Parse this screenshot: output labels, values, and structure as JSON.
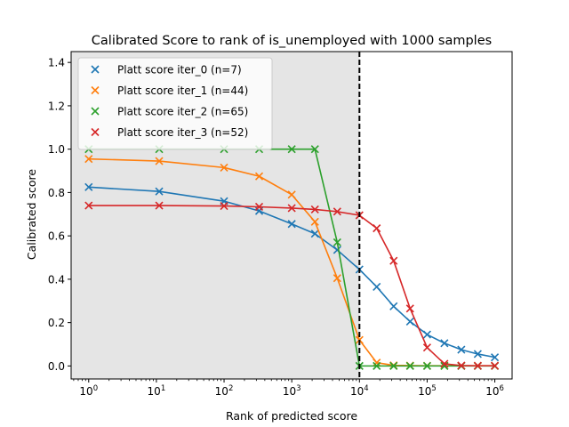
{
  "chart_data": {
    "type": "line",
    "title": "Calibrated Score to rank of is_unemployed with 1000 samples",
    "xlabel": "Rank of predicted score",
    "ylabel": "Calibrated score",
    "xscale": "log",
    "xlim": [
      0.55,
      1800000
    ],
    "ylim": [
      -0.06,
      1.45
    ],
    "x_ticks": [
      {
        "value": 1,
        "base": "10",
        "exp": "0"
      },
      {
        "value": 10,
        "base": "10",
        "exp": "1"
      },
      {
        "value": 100,
        "base": "10",
        "exp": "2"
      },
      {
        "value": 1000,
        "base": "10",
        "exp": "3"
      },
      {
        "value": 10000,
        "base": "10",
        "exp": "4"
      },
      {
        "value": 100000,
        "base": "10",
        "exp": "5"
      },
      {
        "value": 1000000,
        "base": "10",
        "exp": "6"
      }
    ],
    "y_ticks": [
      {
        "value": 0.0,
        "label": "0.0"
      },
      {
        "value": 0.2,
        "label": "0.2"
      },
      {
        "value": 0.4,
        "label": "0.4"
      },
      {
        "value": 0.6,
        "label": "0.6"
      },
      {
        "value": 0.8,
        "label": "0.8"
      },
      {
        "value": 1.0,
        "label": "1.0"
      },
      {
        "value": 1.2,
        "label": "1.2"
      },
      {
        "value": 1.4,
        "label": "1.4"
      }
    ],
    "shaded_region": {
      "x_from": 0.55,
      "x_to": 10000,
      "color": "#e5e5e5"
    },
    "threshold_line": {
      "x": 10000,
      "style": "dashed",
      "color": "#000000"
    },
    "grid": false,
    "legend_position": "top-left",
    "series": [
      {
        "name": "Platt score iter_0 (n=7)",
        "color": "#1f77b4",
        "x": [
          1,
          11,
          100,
          330,
          1000,
          2200,
          4700,
          10000,
          18000,
          32000,
          56000,
          100000,
          180000,
          320000,
          560000,
          1000000
        ],
        "y": [
          0.825,
          0.805,
          0.76,
          0.715,
          0.655,
          0.61,
          0.535,
          0.445,
          0.365,
          0.275,
          0.205,
          0.145,
          0.105,
          0.075,
          0.055,
          0.04
        ]
      },
      {
        "name": "Platt score iter_1 (n=44)",
        "color": "#ff7f0e",
        "x": [
          1,
          11,
          100,
          330,
          1000,
          2200,
          4700,
          10000,
          18000,
          32000,
          56000,
          100000,
          180000,
          320000,
          560000,
          1000000
        ],
        "y": [
          0.955,
          0.945,
          0.915,
          0.875,
          0.79,
          0.665,
          0.405,
          0.12,
          0.015,
          0.003,
          0.002,
          0.001,
          0.001,
          0.001,
          0.001,
          0.001
        ]
      },
      {
        "name": "Platt score iter_2 (n=65)",
        "color": "#2ca02c",
        "x": [
          1,
          11,
          100,
          330,
          1000,
          2200,
          4700,
          10000,
          18000,
          32000,
          56000,
          100000,
          180000,
          320000,
          560000,
          1000000
        ],
        "y": [
          1.0,
          1.0,
          1.0,
          1.0,
          1.0,
          1.0,
          0.57,
          0.0,
          0.0,
          0.0,
          0.0,
          0.0,
          0.0,
          0.0,
          0.0,
          0.0
        ]
      },
      {
        "name": "Platt score iter_3 (n=52)",
        "color": "#d62728",
        "x": [
          1,
          11,
          100,
          330,
          1000,
          2200,
          4700,
          10000,
          18000,
          32000,
          56000,
          100000,
          180000,
          320000,
          560000,
          1000000
        ],
        "y": [
          0.74,
          0.74,
          0.738,
          0.734,
          0.728,
          0.722,
          0.712,
          0.695,
          0.635,
          0.485,
          0.265,
          0.085,
          0.01,
          0.002,
          0.001,
          0.001
        ]
      }
    ]
  }
}
